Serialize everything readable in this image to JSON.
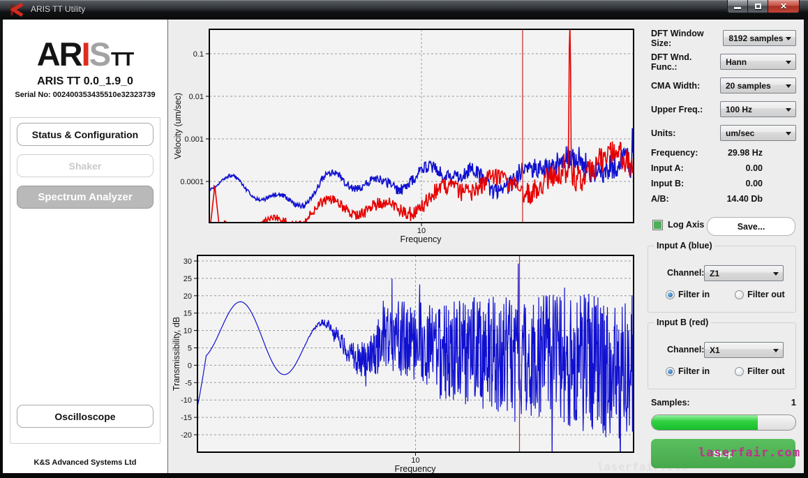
{
  "window": {
    "title": "ARIS TT Utility",
    "close_glyph": "✕"
  },
  "sidebar": {
    "logo": {
      "part1": "AR",
      "part2": "I",
      "part3": "S",
      "part4": "TT"
    },
    "version": "ARIS TT 0.0_1.9_0",
    "serial": "Serial No: 002400353435510e32323739",
    "buttons": [
      {
        "label": "Status & Configuration",
        "state": "normal"
      },
      {
        "label": "Shaker",
        "state": "disabled"
      },
      {
        "label": "Spectrum Analyzer",
        "state": "active"
      }
    ],
    "oscilloscope_label": "Oscilloscope",
    "footer": "K&S Advanced Systems Ltd"
  },
  "controls_panel": {
    "dropdown_rows": [
      {
        "label": "DFT Window Size:",
        "value": "8192 samples"
      },
      {
        "label": "DFT Wnd. Func.:",
        "value": "Hann"
      },
      {
        "label": "CMA Width:",
        "value": "20 samples"
      },
      {
        "label": "Upper Freq.:",
        "value": "100 Hz"
      },
      {
        "label": "Units:",
        "value": "um/sec"
      }
    ],
    "readouts": [
      {
        "label": "Frequency:",
        "value": "29.98 Hz"
      },
      {
        "label": "Input A:",
        "value": "0.00"
      },
      {
        "label": "Input B:",
        "value": "0.00"
      },
      {
        "label": "A/B:",
        "value": "14.40 Db"
      }
    ],
    "log_axis_label": "Log Axis",
    "log_axis_checked": true,
    "save_label": "Save...",
    "input_a": {
      "title": "Input A (blue)",
      "channel_label": "Channel:",
      "channel_value": "Z1",
      "filter_in": "Filter in",
      "filter_out": "Filter out",
      "filter_selected": "in"
    },
    "input_b": {
      "title": "Input B (red)",
      "channel_label": "Channel:",
      "channel_value": "X1",
      "filter_in": "Filter in",
      "filter_out": "Filter out",
      "filter_selected": "in"
    },
    "samples_label": "Samples:",
    "samples_value": "1",
    "progress_percent": 74,
    "stop_label": "Stop"
  },
  "watermark": "laserfair.com",
  "colors": {
    "trace_blue": "#1010d0",
    "trace_red": "#e60000",
    "cursor_red": "#cc2222",
    "plot_bg": "#f3f3f3",
    "plot_border": "#000000",
    "green_button": "#4cb04f",
    "progress_green": "#2fd13d"
  },
  "chart_data": [
    {
      "type": "line",
      "title": "",
      "xlabel": "Frequency",
      "ylabel": "Velocity (um/sec)",
      "x_scale": "log",
      "x_range_hz": [
        1,
        100
      ],
      "x_ticks": [
        10
      ],
      "y_scale": "log",
      "y_ticks": [
        0.1,
        0.01,
        0.001,
        0.0001
      ],
      "y_range": [
        1e-05,
        0.3
      ],
      "grid": true,
      "legend": false,
      "cursor_hz": 29.98,
      "series": [
        {
          "name": "Input A (blue)",
          "color": "#1010d0",
          "description": "noise floor rising from ~7e-5 um/sec at 1 Hz to ~3e-4 um/sec at 100 Hz, small spike ~2e-3 near 98 Hz"
        },
        {
          "name": "Input B (red)",
          "color": "#e60000",
          "description": "noise floor below 2e-5 um/sec at low freq rising to ~2e-4 um/sec at 100 Hz, sharp peak to ~0.3 um/sec at 50 Hz"
        }
      ]
    },
    {
      "type": "line",
      "title": "",
      "xlabel": "Frequency",
      "ylabel": "Transmissibility, dB",
      "x_scale": "log",
      "x_range_hz": [
        1,
        100
      ],
      "x_ticks": [
        10
      ],
      "y_scale": "linear",
      "y_ticks": [
        30,
        25,
        20,
        15,
        10,
        5,
        0,
        -5,
        -10,
        -15,
        -20
      ],
      "y_range": [
        -25,
        31.5
      ],
      "grid": true,
      "legend": false,
      "cursor_hz": 29.98,
      "series": [
        {
          "name": "A/B transmissibility (blue)",
          "color": "#1010d0",
          "description": "smooth oscillation -10..17 dB below ~4 Hz becoming dense noise spanning -20..30 dB toward 100 Hz"
        }
      ]
    }
  ]
}
